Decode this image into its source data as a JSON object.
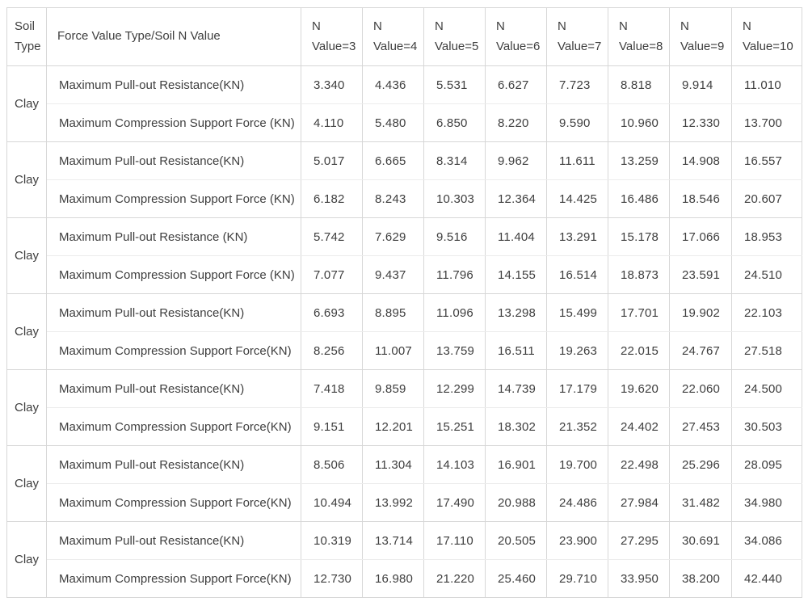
{
  "table": {
    "header": {
      "soil_type": "Soil Type",
      "force_type": "Force Value Type/Soil N Value",
      "n_columns": [
        "N Value=3",
        "N Value=4",
        "N Value=5",
        "N Value=6",
        "N Value=7",
        "N Value=8",
        "N Value=9",
        "N Value=10"
      ]
    },
    "groups": [
      {
        "soil_type": "Clay",
        "rows": [
          {
            "label": "Maximum Pull-out Resistance(KN)",
            "values": [
              "3.340",
              "4.436",
              "5.531",
              "6.627",
              "7.723",
              "8.818",
              "9.914",
              "11.010"
            ]
          },
          {
            "label": "Maximum Compression Support Force (KN)",
            "values": [
              "4.110",
              "5.480",
              "6.850",
              "8.220",
              "9.590",
              "10.960",
              "12.330",
              "13.700"
            ]
          }
        ]
      },
      {
        "soil_type": "Clay",
        "rows": [
          {
            "label": "Maximum Pull-out Resistance(KN)",
            "values": [
              "5.017",
              "6.665",
              "8.314",
              "9.962",
              "11.611",
              "13.259",
              "14.908",
              "16.557"
            ]
          },
          {
            "label": "Maximum Compression Support Force (KN)",
            "values": [
              "6.182",
              "8.243",
              "10.303",
              "12.364",
              "14.425",
              "16.486",
              "18.546",
              "20.607"
            ]
          }
        ]
      },
      {
        "soil_type": "Clay",
        "rows": [
          {
            "label": "Maximum Pull-out Resistance (KN)",
            "values": [
              "5.742",
              "7.629",
              "9.516",
              "11.404",
              "13.291",
              "15.178",
              "17.066",
              "18.953"
            ]
          },
          {
            "label": "Maximum Compression Support Force (KN)",
            "values": [
              "7.077",
              "9.437",
              "11.796",
              "14.155",
              "16.514",
              "18.873",
              "23.591",
              "24.510"
            ]
          }
        ]
      },
      {
        "soil_type": "Clay",
        "rows": [
          {
            "label": "Maximum Pull-out Resistance(KN)",
            "values": [
              "6.693",
              "8.895",
              "11.096",
              "13.298",
              "15.499",
              "17.701",
              "19.902",
              "22.103"
            ]
          },
          {
            "label": "Maximum Compression Support Force(KN)",
            "values": [
              "8.256",
              "11.007",
              "13.759",
              "16.511",
              "19.263",
              "22.015",
              "24.767",
              "27.518"
            ]
          }
        ]
      },
      {
        "soil_type": "Clay",
        "rows": [
          {
            "label": "Maximum Pull-out Resistance(KN)",
            "values": [
              "7.418",
              "9.859",
              "12.299",
              "14.739",
              "17.179",
              "19.620",
              "22.060",
              "24.500"
            ]
          },
          {
            "label": "Maximum Compression Support Force(KN)",
            "values": [
              "9.151",
              "12.201",
              "15.251",
              "18.302",
              "21.352",
              "24.402",
              "27.453",
              "30.503"
            ]
          }
        ]
      },
      {
        "soil_type": "Clay",
        "rows": [
          {
            "label": "Maximum Pull-out Resistance(KN)",
            "values": [
              "8.506",
              "11.304",
              "14.103",
              "16.901",
              "19.700",
              "22.498",
              "25.296",
              "28.095"
            ]
          },
          {
            "label": "Maximum Compression Support Force(KN)",
            "values": [
              "10.494",
              "13.992",
              "17.490",
              "20.988",
              "24.486",
              "27.984",
              "31.482",
              "34.980"
            ]
          }
        ]
      },
      {
        "soil_type": "Clay",
        "rows": [
          {
            "label": "Maximum Pull-out Resistance(KN)",
            "values": [
              "10.319",
              "13.714",
              "17.110",
              "20.505",
              "23.900",
              "27.295",
              "30.691",
              "34.086"
            ]
          },
          {
            "label": "Maximum Compression Support Force(KN)",
            "values": [
              "12.730",
              "16.980",
              "21.220",
              "25.460",
              "29.710",
              "33.950",
              "38.200",
              "42.440"
            ]
          }
        ]
      }
    ],
    "colors": {
      "background": "#ffffff",
      "border": "#d7d7d7",
      "inner_row_border": "#ececec",
      "text": "#3e3e3e"
    }
  }
}
